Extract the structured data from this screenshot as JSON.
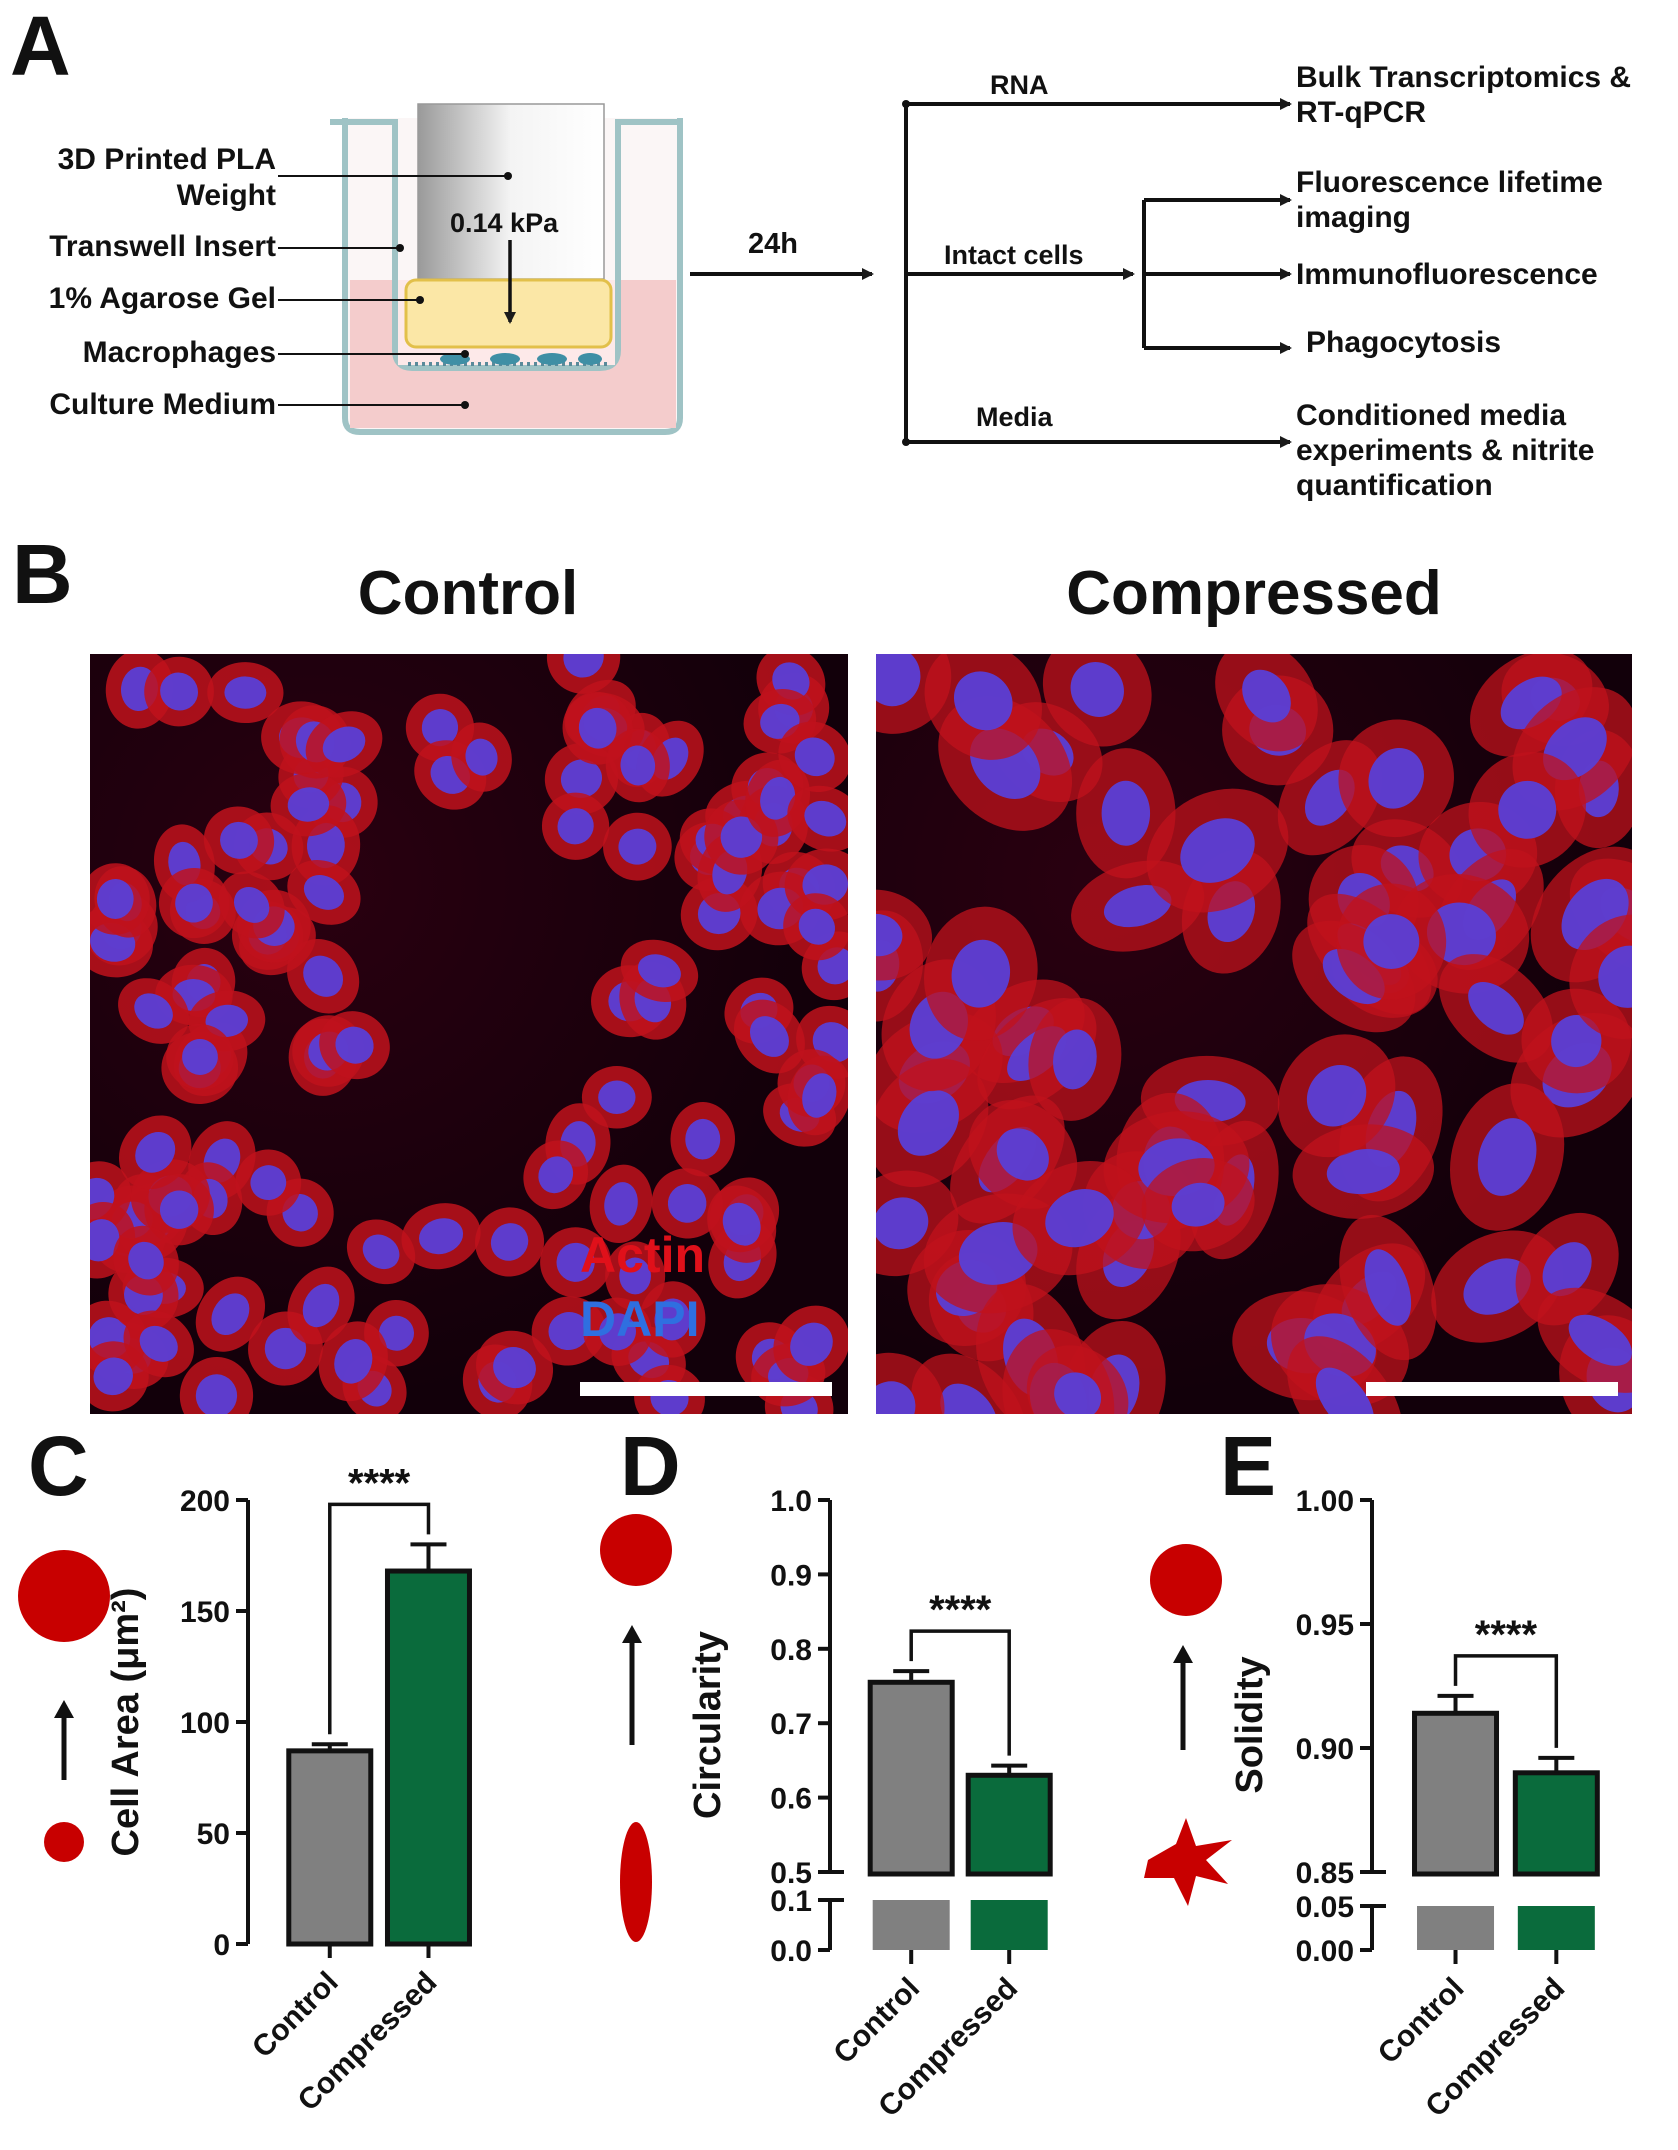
{
  "panels": {
    "a": "A",
    "b": "B",
    "c": "C",
    "d": "D",
    "e": "E"
  },
  "panelA": {
    "labels": {
      "weight": "3D Printed PLA\nWeight",
      "insert": "Transwell Insert",
      "gel": "1% Agarose Gel",
      "macrophages": "Macrophages",
      "medium": "Culture Medium"
    },
    "pressure": "0.14 kPa",
    "time": "24h",
    "branches": {
      "rna": "RNA",
      "intact": "Intact cells",
      "media": "Media"
    },
    "outputs": {
      "bulk": "Bulk Transcriptomics &\nRT-qPCR",
      "flim": "Fluorescence lifetime\nimaging",
      "if": "Immunofluorescence",
      "phago": "Phagocytosis",
      "cm": "Conditioned media\nexperiments & nitrite\nquantification"
    }
  },
  "panelB": {
    "control_title": "Control",
    "compressed_title": "Compressed",
    "legend_actin": "Actin",
    "legend_dapi": "DAPI",
    "actin_color": "#e0101a",
    "dapi_color": "#2f6fe0"
  },
  "colors": {
    "control": "#808080",
    "compressed": "#0a6b3c",
    "icon": "#c80000"
  },
  "chart_data": [
    {
      "type": "bar",
      "panel": "C",
      "categories": [
        "Control",
        "Compressed"
      ],
      "values": [
        87,
        168
      ],
      "errors": [
        3,
        12
      ],
      "ylabel": "Cell  Area (μm²)",
      "ylim": [
        0,
        200
      ],
      "yticks": [
        "0",
        "50",
        "100",
        "150",
        "200"
      ],
      "significance": "****"
    },
    {
      "type": "bar",
      "panel": "D",
      "categories": [
        "Control",
        "Compressed"
      ],
      "values": [
        0.755,
        0.63
      ],
      "errors": [
        0.015,
        0.013
      ],
      "ylabel": "Circularity",
      "ylim": [
        0,
        1.0
      ],
      "axis_break": [
        0.1,
        0.5
      ],
      "yticks": [
        "0.0",
        "0.1",
        "0.5",
        "0.6",
        "0.7",
        "0.8",
        "0.9",
        "1.0"
      ],
      "significance": "****"
    },
    {
      "type": "bar",
      "panel": "E",
      "categories": [
        "Control",
        "Compressed"
      ],
      "values": [
        0.914,
        0.89
      ],
      "errors": [
        0.007,
        0.006
      ],
      "ylabel": "Solidity",
      "ylim": [
        0,
        1.0
      ],
      "axis_break": [
        0.05,
        0.85
      ],
      "yticks": [
        "0.00",
        "0.05",
        "0.85",
        "0.90",
        "0.95",
        "1.00"
      ],
      "significance": "****"
    }
  ]
}
